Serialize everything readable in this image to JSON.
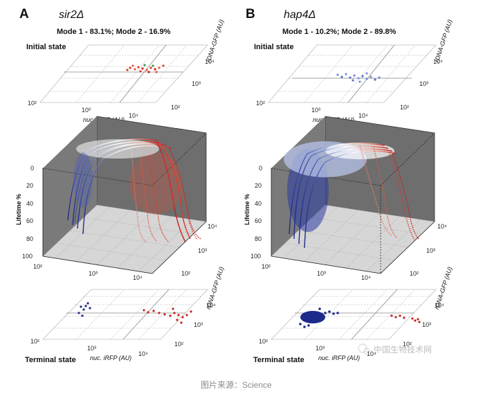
{
  "figure": {
    "panels": [
      {
        "letter": "A",
        "strain": "sir2Δ",
        "modes": "Mode 1 - 83.1%; Mode 2 - 16.9%",
        "initial_label": "Initial state",
        "terminal_label": "Terminal state",
        "x_axis_label": "nuc. iRFP (AU)",
        "y_axis_label": "rDNA-GFP (AU)",
        "z_axis_label": "Lifetime %",
        "lifetime_ticks": [
          "0",
          "20",
          "40",
          "60",
          "80",
          "100"
        ],
        "x_ticks": [
          "10²",
          "10³",
          "10⁴"
        ],
        "y_ticks": [
          "10²",
          "10³",
          "10⁴"
        ],
        "mode_fraction": [
          0.831,
          0.169
        ]
      },
      {
        "letter": "B",
        "strain": "hap4Δ",
        "modes": "Mode 1 - 10.2%; Mode 2 - 89.8%",
        "initial_label": "Initial state",
        "terminal_label": "Terminal state",
        "x_axis_label": "nuc. iRFP (AU)",
        "y_axis_label": "rDNA-GFP (AU)",
        "z_axis_label": "Lifetime %",
        "lifetime_ticks": [
          "0",
          "20",
          "40",
          "60",
          "80",
          "100"
        ],
        "x_ticks": [
          "10²",
          "10³",
          "10⁴"
        ],
        "y_ticks": [
          "10²",
          "10³",
          "10⁴"
        ],
        "mode_fraction": [
          0.102,
          0.898
        ]
      }
    ],
    "colors": {
      "mode1_blue": "#1c2a8c",
      "mode2_red": "#c8201e",
      "back_wall": "#6e6e6e",
      "floor": "#d9d9d9"
    },
    "caption": "图片来源：Science",
    "watermark": "中国生物技术网"
  }
}
